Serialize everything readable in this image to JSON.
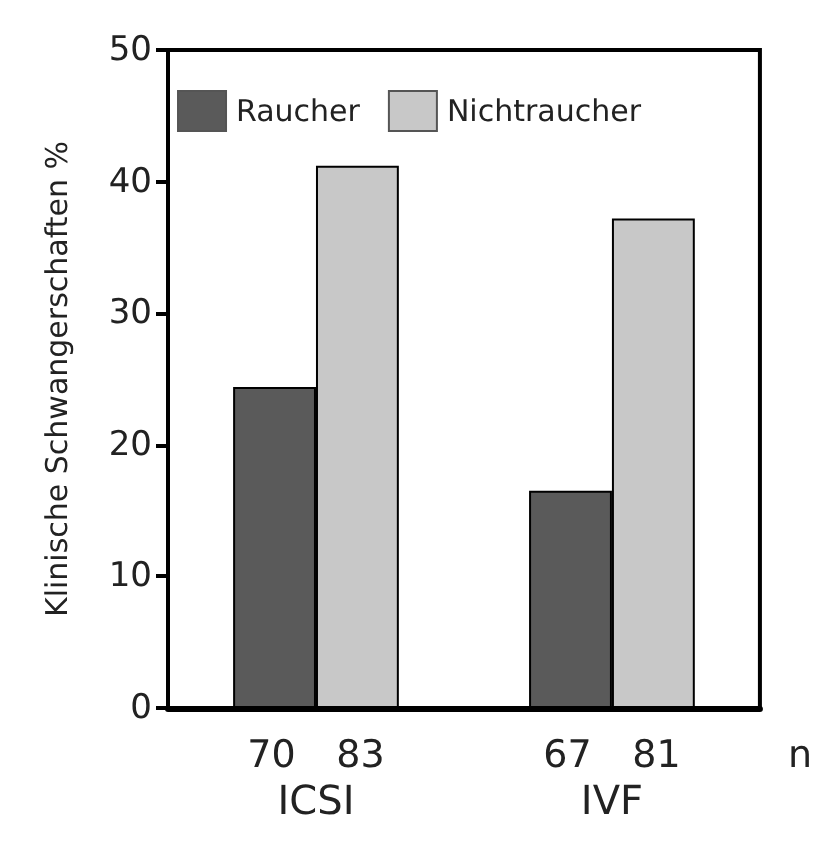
{
  "chart_data": {
    "type": "bar",
    "ylabel": "Klinische Schwangerschaften %",
    "xlabel": "n",
    "categories": [
      "ICSI",
      "IVF"
    ],
    "series": [
      {
        "name": "Raucher",
        "color": "#5a5a5a",
        "values": [
          24.4,
          16.5
        ]
      },
      {
        "name": "Nichtraucher",
        "color": "#c8c8c8",
        "values": [
          41.2,
          37.2
        ]
      }
    ],
    "annotations": [
      "70",
      "83",
      "67",
      "81"
    ],
    "ylim": [
      0,
      50
    ],
    "yticks": [
      0,
      10,
      20,
      30,
      40,
      50
    ],
    "legend": "top",
    "grid": false
  }
}
